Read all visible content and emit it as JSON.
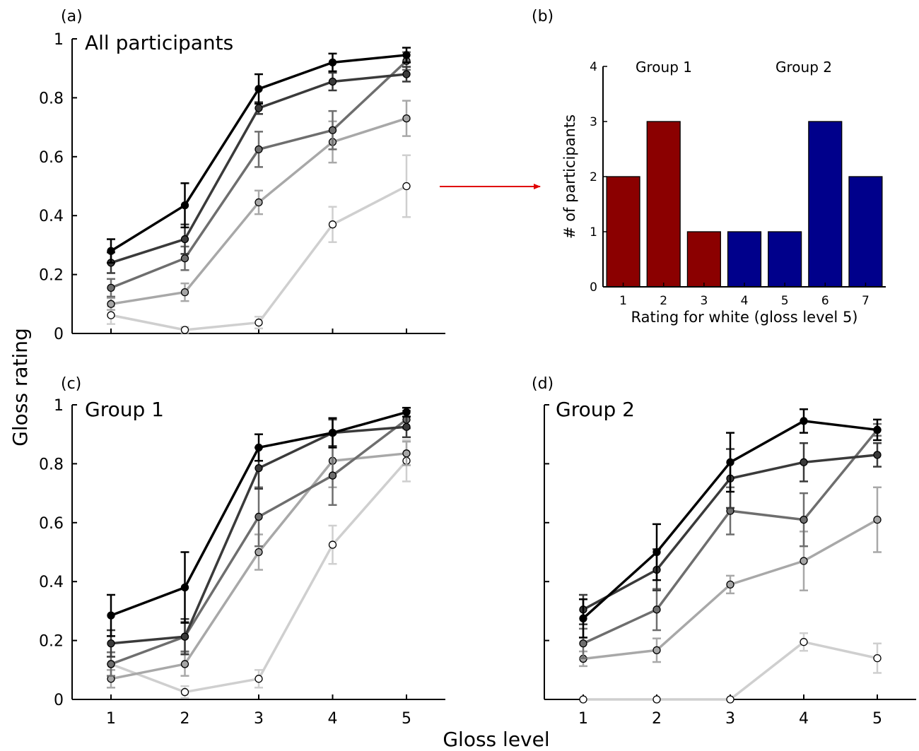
{
  "figure": {
    "ylabel": "Gloss rating",
    "xlabel": "Gloss level"
  },
  "panel_a": {
    "letter": "(a)",
    "title": "All participants"
  },
  "panel_b": {
    "letter": "(b)",
    "group1_label": "Group 1",
    "group2_label": "Group 2"
  },
  "panel_c": {
    "letter": "(c)",
    "title": "Group 1"
  },
  "panel_d": {
    "letter": "(d)",
    "title": "Group 2"
  },
  "series_colors": [
    "#000000",
    "#3a3a3a",
    "#6e6e6e",
    "#a6a6a6",
    "#ffffff"
  ],
  "series_line_colors": [
    "#000000",
    "#3a3a3a",
    "#6e6e6e",
    "#a8a8a8",
    "#cfcfcf"
  ],
  "chart_data": [
    {
      "panel": "a",
      "type": "line",
      "title": "All participants",
      "x": [
        1,
        2,
        3,
        4,
        5
      ],
      "xlim": [
        0.5,
        5.5
      ],
      "ylim": [
        0,
        1
      ],
      "yticks": [
        0,
        0.2,
        0.4,
        0.6,
        0.8,
        1
      ],
      "yticklabels": [
        "0",
        "0.2",
        "0.4",
        "0.6",
        "0.8",
        "1"
      ],
      "xticklabels": [
        "",
        "",
        "",
        "",
        ""
      ],
      "series": [
        {
          "values": [
            0.28,
            0.435,
            0.83,
            0.92,
            0.945
          ],
          "errors": [
            0.04,
            0.075,
            0.05,
            0.03,
            0.025
          ]
        },
        {
          "values": [
            0.24,
            0.32,
            0.765,
            0.855,
            0.88
          ],
          "errors": [
            0.035,
            0.05,
            0.02,
            0.03,
            0.025
          ]
        },
        {
          "values": [
            0.155,
            0.255,
            0.625,
            0.69,
            0.925
          ],
          "errors": [
            0.03,
            0.04,
            0.06,
            0.065,
            0.03
          ]
        },
        {
          "values": [
            0.1,
            0.14,
            0.445,
            0.65,
            0.73
          ],
          "errors": [
            0.02,
            0.03,
            0.04,
            0.07,
            0.06
          ]
        },
        {
          "values": [
            0.062,
            0.012,
            0.037,
            0.37,
            0.5
          ],
          "errors": [
            0.03,
            0.01,
            0.02,
            0.06,
            0.105
          ]
        }
      ]
    },
    {
      "panel": "b",
      "type": "bar",
      "categories": [
        "1",
        "2",
        "3",
        "4",
        "5",
        "6",
        "7"
      ],
      "values": [
        2,
        3,
        1,
        1,
        1,
        3,
        2
      ],
      "groups": [
        "Group 1",
        "Group 1",
        "Group 1",
        "Group 2",
        "Group 2",
        "Group 2",
        "Group 2"
      ],
      "colors": [
        "#8b0000",
        "#8b0000",
        "#8b0000",
        "#00008b",
        "#00008b",
        "#00008b",
        "#00008b"
      ],
      "xlabel": "Rating for white (gloss level 5)",
      "ylabel": "# of participants",
      "ylim": [
        0,
        4
      ],
      "yticks": [
        "0",
        "1",
        "2",
        "3",
        "4"
      ]
    },
    {
      "panel": "c",
      "type": "line",
      "title": "Group 1",
      "x": [
        1,
        2,
        3,
        4,
        5
      ],
      "xlim": [
        0.5,
        5.5
      ],
      "ylim": [
        0,
        1
      ],
      "yticks": [
        0,
        0.2,
        0.4,
        0.6,
        0.8,
        1
      ],
      "yticklabels": [
        "0",
        "0.2",
        "0.4",
        "0.6",
        "0.8",
        "1"
      ],
      "xticklabels": [
        "1",
        "2",
        "3",
        "4",
        "5"
      ],
      "series": [
        {
          "values": [
            0.285,
            0.38,
            0.855,
            0.905,
            0.975
          ],
          "errors": [
            0.07,
            0.12,
            0.045,
            0.05,
            0.015
          ]
        },
        {
          "values": [
            0.19,
            0.213,
            0.785,
            0.905,
            0.925
          ],
          "errors": [
            0.045,
            0.06,
            0.07,
            0.045,
            0.035
          ]
        },
        {
          "values": [
            0.12,
            0.213,
            0.62,
            0.76,
            0.95
          ],
          "errors": [
            0.04,
            0.05,
            0.1,
            0.1,
            0.03
          ]
        },
        {
          "values": [
            0.07,
            0.12,
            0.5,
            0.81,
            0.835
          ],
          "errors": [
            0.03,
            0.04,
            0.06,
            0.09,
            0.04
          ]
        },
        {
          "values": [
            0.12,
            0.025,
            0.07,
            0.525,
            0.81
          ],
          "errors": [
            0.0,
            0.02,
            0.03,
            0.065,
            0.07
          ]
        }
      ]
    },
    {
      "panel": "d",
      "type": "line",
      "title": "Group 2",
      "x": [
        1,
        2,
        3,
        4,
        5
      ],
      "xlim": [
        0.5,
        5.5
      ],
      "ylim": [
        0,
        1
      ],
      "yticks": [
        0,
        0.2,
        0.4,
        0.6,
        0.8,
        1
      ],
      "yticklabels": [
        "",
        "",
        "",
        "",
        "",
        ""
      ],
      "xticklabels": [
        "1",
        "2",
        "3",
        "4",
        "5"
      ],
      "series": [
        {
          "values": [
            0.275,
            0.5,
            0.805,
            0.945,
            0.915
          ],
          "errors": [
            0.065,
            0.095,
            0.1,
            0.04,
            0.035
          ]
        },
        {
          "values": [
            0.305,
            0.44,
            0.75,
            0.805,
            0.83
          ],
          "errors": [
            0.05,
            0.07,
            0.1,
            0.065,
            0.04
          ]
        },
        {
          "values": [
            0.19,
            0.305,
            0.64,
            0.61,
            0.915
          ],
          "errors": [
            0.05,
            0.07,
            0.08,
            0.09,
            0.02
          ]
        },
        {
          "values": [
            0.138,
            0.167,
            0.39,
            0.47,
            0.61
          ],
          "errors": [
            0.025,
            0.04,
            0.03,
            0.1,
            0.11
          ]
        },
        {
          "values": [
            0.0,
            0.0,
            0.0,
            0.195,
            0.14
          ],
          "errors": [
            0.0,
            0.0,
            0.0,
            0.03,
            0.05
          ]
        }
      ]
    }
  ]
}
